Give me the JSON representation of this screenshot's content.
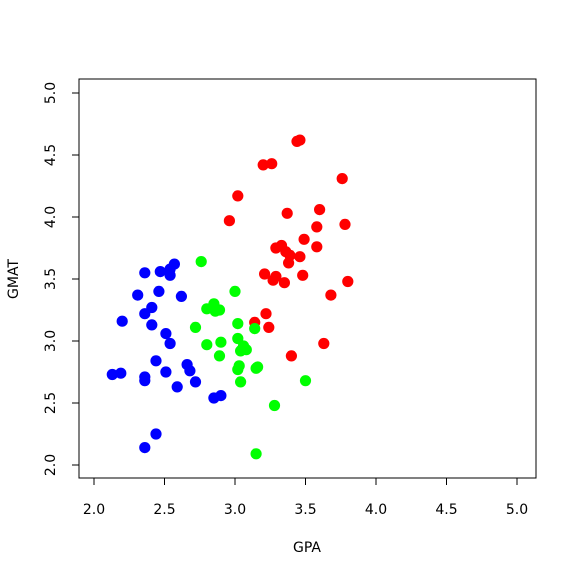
{
  "chart_data": {
    "type": "scatter",
    "title": "",
    "xlabel": "GPA",
    "ylabel": "GMAT",
    "xlim": [
      2.0,
      5.0
    ],
    "ylim": [
      2.0,
      5.0
    ],
    "x_ticks": [
      "2.0",
      "2.5",
      "3.0",
      "3.5",
      "4.0",
      "4.5",
      "5.0"
    ],
    "y_ticks": [
      "2.0",
      "2.5",
      "3.0",
      "3.5",
      "4.0",
      "4.5",
      "5.0"
    ],
    "grid": false,
    "legend": "none",
    "series": [
      {
        "color": "#ff0000",
        "points": [
          [
            2.96,
            3.97
          ],
          [
            3.02,
            4.17
          ],
          [
            3.2,
            4.42
          ],
          [
            3.26,
            4.43
          ],
          [
            3.44,
            4.61
          ],
          [
            3.46,
            4.62
          ],
          [
            3.76,
            4.31
          ],
          [
            3.37,
            4.03
          ],
          [
            3.6,
            4.06
          ],
          [
            3.58,
            3.92
          ],
          [
            3.78,
            3.94
          ],
          [
            3.29,
            3.75
          ],
          [
            3.33,
            3.77
          ],
          [
            3.36,
            3.72
          ],
          [
            3.39,
            3.69
          ],
          [
            3.46,
            3.68
          ],
          [
            3.49,
            3.82
          ],
          [
            3.58,
            3.76
          ],
          [
            3.38,
            3.63
          ],
          [
            3.21,
            3.54
          ],
          [
            3.27,
            3.49
          ],
          [
            3.29,
            3.52
          ],
          [
            3.35,
            3.47
          ],
          [
            3.48,
            3.53
          ],
          [
            3.8,
            3.48
          ],
          [
            3.68,
            3.37
          ],
          [
            3.22,
            3.22
          ],
          [
            3.24,
            3.11
          ],
          [
            3.14,
            3.15
          ],
          [
            3.4,
            2.88
          ],
          [
            3.63,
            2.98
          ]
        ]
      },
      {
        "color": "#00ff00",
        "points": [
          [
            2.76,
            3.64
          ],
          [
            2.8,
            3.26
          ],
          [
            2.85,
            3.3
          ],
          [
            2.86,
            3.24
          ],
          [
            2.89,
            3.25
          ],
          [
            2.72,
            3.11
          ],
          [
            3.0,
            3.4
          ],
          [
            3.02,
            3.14
          ],
          [
            3.14,
            3.1
          ],
          [
            3.02,
            3.02
          ],
          [
            3.06,
            2.96
          ],
          [
            3.04,
            2.92
          ],
          [
            3.08,
            2.93
          ],
          [
            2.8,
            2.97
          ],
          [
            2.9,
            2.99
          ],
          [
            2.89,
            2.88
          ],
          [
            3.03,
            2.8
          ],
          [
            3.02,
            2.77
          ],
          [
            3.15,
            2.78
          ],
          [
            3.16,
            2.79
          ],
          [
            3.04,
            2.67
          ],
          [
            3.5,
            2.68
          ],
          [
            3.28,
            2.48
          ],
          [
            3.15,
            2.09
          ]
        ]
      },
      {
        "color": "#0000ff",
        "points": [
          [
            2.36,
            3.55
          ],
          [
            2.47,
            3.56
          ],
          [
            2.54,
            3.58
          ],
          [
            2.57,
            3.62
          ],
          [
            2.54,
            3.53
          ],
          [
            2.31,
            3.37
          ],
          [
            2.46,
            3.4
          ],
          [
            2.62,
            3.36
          ],
          [
            2.2,
            3.16
          ],
          [
            2.36,
            3.22
          ],
          [
            2.41,
            3.27
          ],
          [
            2.41,
            3.13
          ],
          [
            2.51,
            3.06
          ],
          [
            2.54,
            2.98
          ],
          [
            2.13,
            2.73
          ],
          [
            2.19,
            2.74
          ],
          [
            2.36,
            2.71
          ],
          [
            2.36,
            2.68
          ],
          [
            2.44,
            2.84
          ],
          [
            2.51,
            2.75
          ],
          [
            2.66,
            2.81
          ],
          [
            2.68,
            2.76
          ],
          [
            2.59,
            2.63
          ],
          [
            2.72,
            2.67
          ],
          [
            2.85,
            2.54
          ],
          [
            2.9,
            2.56
          ],
          [
            2.44,
            2.25
          ],
          [
            2.36,
            2.14
          ]
        ]
      }
    ]
  }
}
